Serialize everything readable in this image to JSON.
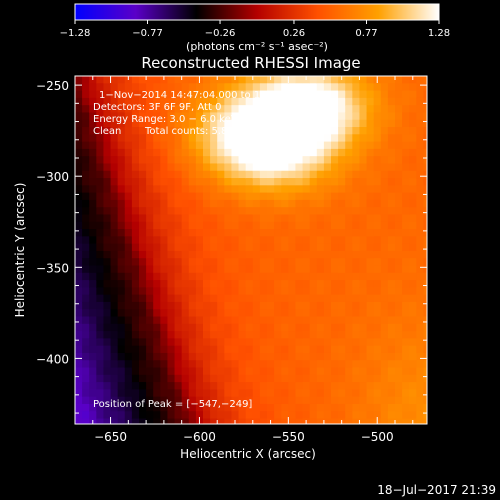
{
  "chart_data": {
    "type": "heatmap",
    "title": "Reconstructed RHESSI Image",
    "xlabel": "Heliocentric X (arcsec)",
    "ylabel": "Heliocentric Y (arcsec)",
    "xlim": [
      -670,
      -472
    ],
    "ylim": [
      -436,
      -245
    ],
    "x_ticks": [
      -650,
      -600,
      -550,
      -500
    ],
    "x_tick_labels": [
      "−650",
      "−600",
      "−550",
      "−500"
    ],
    "y_ticks": [
      -250,
      -300,
      -350,
      -400
    ],
    "y_tick_labels": [
      "−250",
      "−300",
      "−350",
      "−400"
    ],
    "grid": false,
    "colorbar": {
      "location": "top",
      "min": -1.28,
      "max": 1.28,
      "ticks": [
        -1.28,
        -0.77,
        -0.26,
        0.26,
        0.77,
        1.28
      ],
      "tick_labels": [
        "−1.28",
        "−0.77",
        "−0.26",
        "0.26",
        "0.77",
        "1.28"
      ],
      "units_label": "(photons cm⁻² s⁻¹ asec⁻²)",
      "colormap_stops": [
        "#0000ff",
        "#5a00c8",
        "#000000",
        "#b40000",
        "#ff5000",
        "#ffa000",
        "#ffffff"
      ]
    },
    "annotations": {
      "time_range": "1−Nov−2014 14:47:04.000 to 14:57:04.000",
      "detectors": "Detectors: 3F 6F 9F, Att 0",
      "energy_range": "Energy Range: 3.0 − 6.0 keV",
      "clean_label": "Clean",
      "total_counts": "Total counts: 5.89E+04",
      "peak_position": "Position of Peak = [−547,−249]"
    },
    "peak": {
      "x": -547,
      "y": -249
    },
    "source_centers": [
      {
        "x": -540,
        "y": -262,
        "value": 1.3
      },
      {
        "x": -558,
        "y": -288,
        "value": 1.0
      },
      {
        "x": -575,
        "y": -275,
        "value": 0.9
      }
    ],
    "background_ridge": {
      "x_at_top": -672,
      "x_at_bottom": -608,
      "value_at_ridge": -0.2,
      "value_far_left": -0.85
    }
  },
  "footer": {
    "date_time": "18−Jul−2017 21:39"
  }
}
